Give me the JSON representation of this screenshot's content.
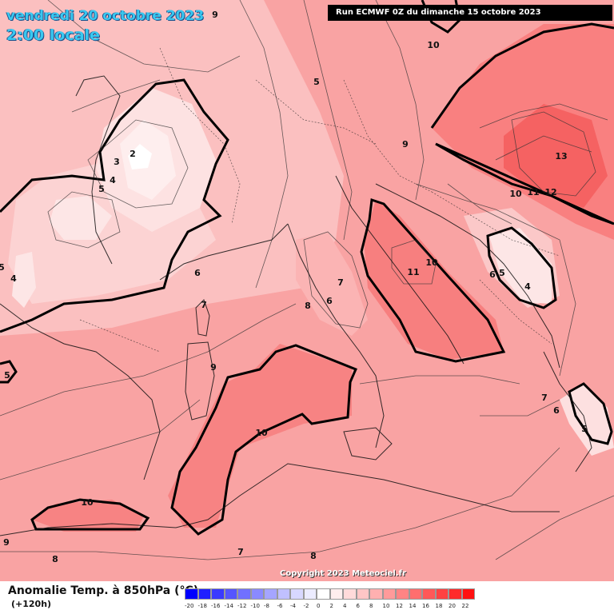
{
  "header": {
    "date": "vendredi 20 octobre 2023",
    "hour": "2:00 locale",
    "run": "Run ECMWF 0Z du dimanche 15 octobre 2023"
  },
  "copyright": "Copyright 2023 Meteociel.fr",
  "legend": {
    "title": "Anomalie Temp. à 850hPa (°C)",
    "subtitle": "(+120h)",
    "ticks": [
      "-20",
      "-18",
      "-16",
      "-14",
      "-12",
      "-10",
      "-8",
      "-6",
      "-4",
      "-2",
      "0",
      "2",
      "4",
      "6",
      "8",
      "10",
      "12",
      "14",
      "16",
      "18",
      "20",
      "22"
    ],
    "colors": [
      "#0000ff",
      "#1f1fff",
      "#3a3aff",
      "#5555ff",
      "#7070ff",
      "#8a8aff",
      "#a5a5ff",
      "#c0c0ff",
      "#d8d8ff",
      "#ececff",
      "#ffffff",
      "#ffeeee",
      "#ffdada",
      "#ffc6c6",
      "#ffb0b0",
      "#ff9a9a",
      "#ff8484",
      "#ff6e6e",
      "#ff5858",
      "#ff4242",
      "#ff2a2a",
      "#ff1010"
    ]
  },
  "contour_labels": [
    {
      "text": "9"
    },
    {
      "text": "10"
    },
    {
      "text": "5"
    },
    {
      "text": "9"
    },
    {
      "text": "13"
    },
    {
      "text": "10"
    },
    {
      "text": "11"
    },
    {
      "text": "12"
    },
    {
      "text": "2"
    },
    {
      "text": "3"
    },
    {
      "text": "4"
    },
    {
      "text": "5"
    },
    {
      "text": "5"
    },
    {
      "text": "4"
    },
    {
      "text": "6"
    },
    {
      "text": "7"
    },
    {
      "text": "10"
    },
    {
      "text": "11"
    },
    {
      "text": "7"
    },
    {
      "text": "6"
    },
    {
      "text": "8"
    },
    {
      "text": "6"
    },
    {
      "text": "5"
    },
    {
      "text": "4"
    },
    {
      "text": "9"
    },
    {
      "text": "10"
    },
    {
      "text": "5"
    },
    {
      "text": "7"
    },
    {
      "text": "6"
    },
    {
      "text": "5"
    },
    {
      "text": "10"
    },
    {
      "text": "9"
    },
    {
      "text": "8"
    },
    {
      "text": "7"
    },
    {
      "text": "8"
    }
  ]
}
